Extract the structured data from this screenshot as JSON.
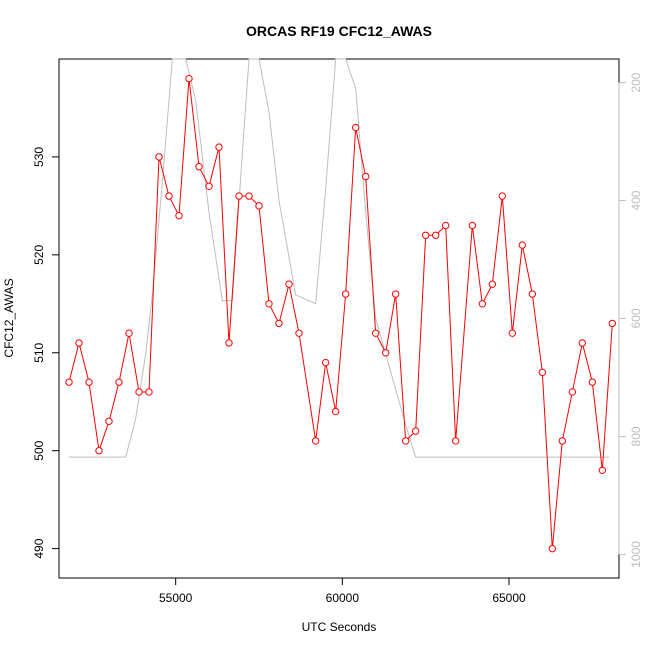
{
  "chart_data": {
    "type": "line",
    "title": "ORCAS RF19 CFC12_AWAS",
    "xlabel": "UTC Seconds",
    "ylabel": "CFC12_AWAS",
    "y2label": "",
    "xlim": [
      51500,
      68300
    ],
    "ylim": [
      487,
      540
    ],
    "y2lim_top_to_bottom": [
      160,
      1040
    ],
    "x_ticks": [
      55000,
      60000,
      65000
    ],
    "y_ticks": [
      490,
      500,
      510,
      520,
      530
    ],
    "y2_ticks": [
      200,
      400,
      600,
      800,
      1000
    ],
    "colors": {
      "series": "#ff0000",
      "secondary": "#bebebe",
      "axis": "#000000",
      "axis2": "#bebebe"
    },
    "series": [
      {
        "role": "primary",
        "markers": "open-circle",
        "x": [
          51800,
          52100,
          52400,
          52700,
          53000,
          53300,
          53600,
          53900,
          54200,
          54500,
          54800,
          55100,
          55400,
          55700,
          56000,
          56300,
          56600,
          56900,
          57200,
          57500,
          57800,
          58100,
          58400,
          58700,
          59200,
          59500,
          59800,
          60100,
          60400,
          60700,
          61000,
          61300,
          61600,
          61900,
          62200,
          62500,
          62800,
          63100,
          63400,
          63900,
          64200,
          64500,
          64800,
          65100,
          65400,
          65700,
          66000,
          66300,
          66600,
          66900,
          67200,
          67500,
          67800
        ],
        "values": [
          507,
          511,
          507,
          500,
          503,
          507,
          512,
          506,
          506,
          530,
          526,
          524,
          538,
          529,
          527,
          531,
          511,
          526,
          526,
          525,
          515,
          513,
          517,
          512,
          501,
          509,
          504,
          516,
          533,
          528,
          512,
          510,
          516,
          501,
          502,
          522,
          522,
          523,
          501,
          523,
          515,
          517,
          526,
          512,
          521,
          516,
          508,
          490,
          501,
          506,
          511,
          507,
          498
        ]
      },
      {
        "role": "secondary",
        "axis": "right",
        "x": [
          51800,
          53500,
          53800,
          54100,
          54300,
          54600,
          54900,
          55300,
          55600,
          56000,
          56400,
          56700,
          57000,
          57200,
          57500,
          57800,
          58100,
          58600,
          59200,
          59500,
          59800,
          60100,
          60400,
          60700,
          61000,
          61300,
          61600,
          61900,
          62200,
          68000
        ],
        "values": [
          835,
          835,
          770,
          660,
          560,
          370,
          150,
          150,
          230,
          420,
          570,
          570,
          320,
          120,
          120,
          250,
          400,
          560,
          575,
          380,
          150,
          150,
          210,
          420,
          600,
          660,
          720,
          780,
          835,
          835
        ]
      }
    ],
    "extra_point": {
      "x": 68100,
      "value": 513
    }
  }
}
